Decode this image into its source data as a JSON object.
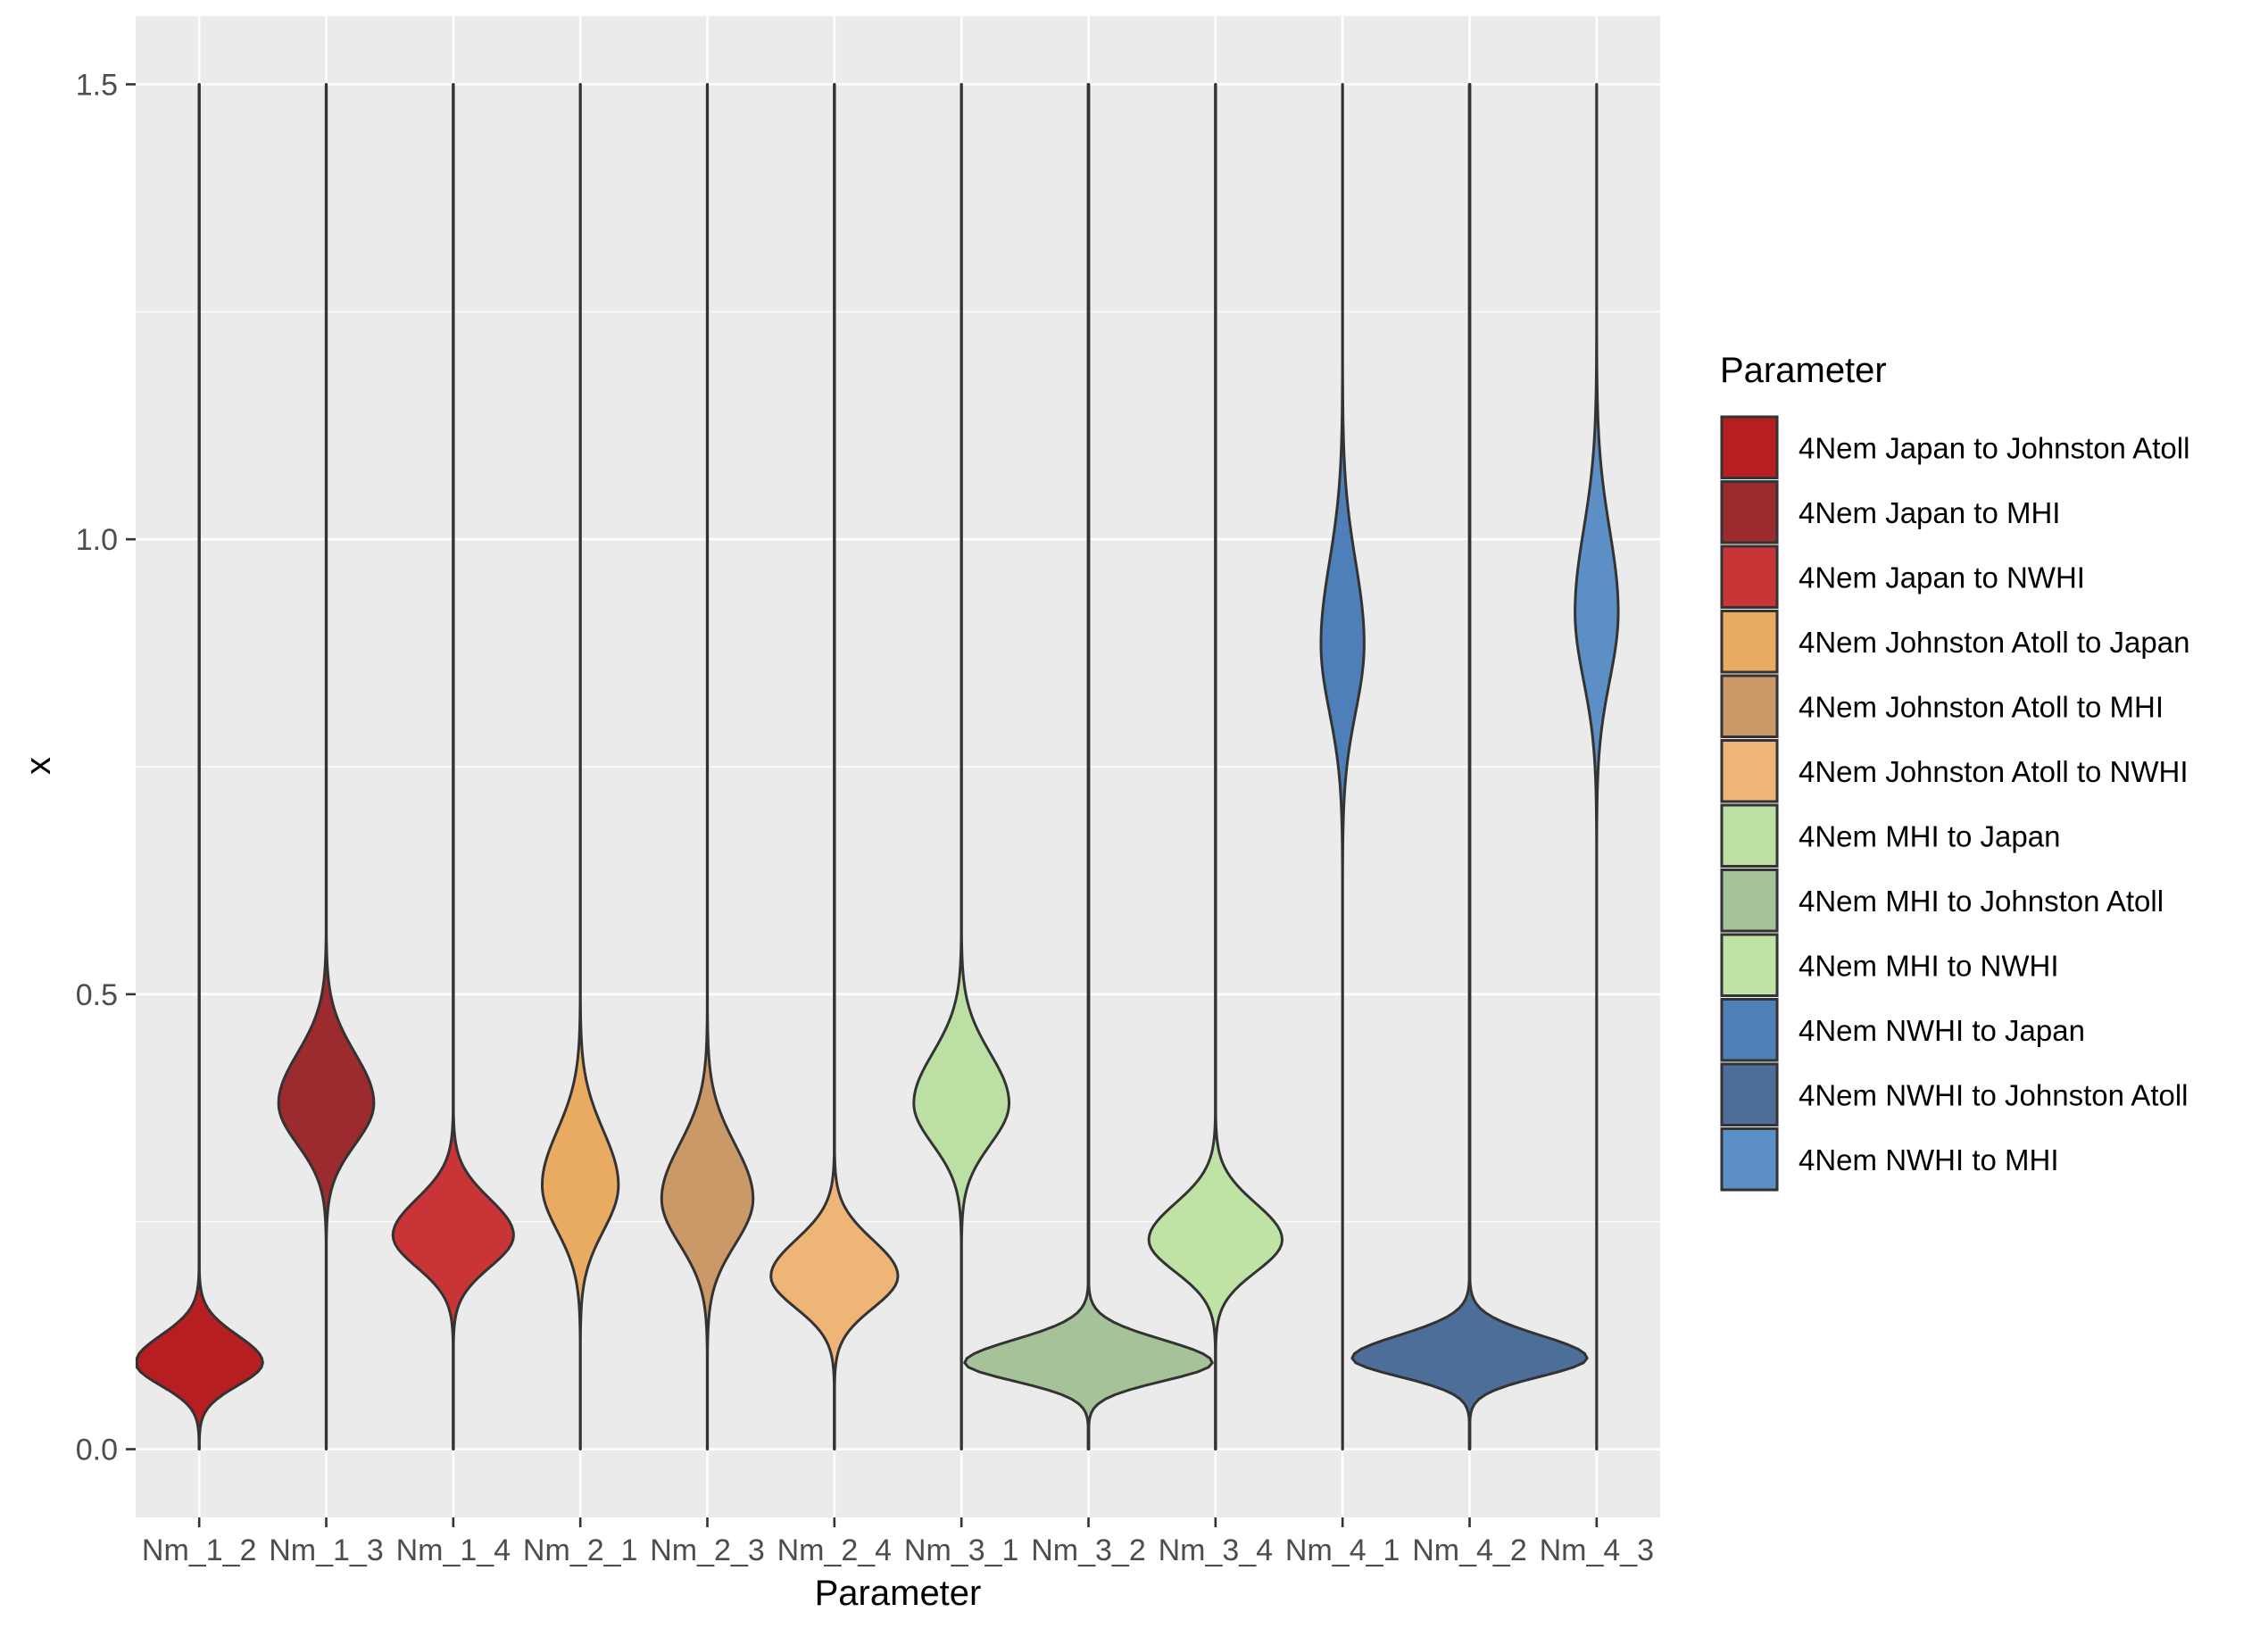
{
  "chart_data": {
    "type": "violin",
    "xlabel": "Parameter",
    "ylabel": "x",
    "ylim": [
      -0.075,
      1.575
    ],
    "yticks": [
      0.0,
      0.5,
      1.0,
      1.5
    ],
    "ytick_labels": [
      "0.0",
      "0.5",
      "1.0",
      "1.5"
    ],
    "grid": true,
    "legend_position": "right",
    "legend": {
      "title": "Parameter",
      "entries": [
        {
          "label": "4Nem Japan to Johnston Atoll",
          "color": "#B71E22"
        },
        {
          "label": "4Nem Japan to MHI",
          "color": "#9B2B2F"
        },
        {
          "label": "4Nem Japan to NWHI",
          "color": "#C93437"
        },
        {
          "label": "4Nem Johnston Atoll to Japan",
          "color": "#E9AB61"
        },
        {
          "label": "4Nem Johnston Atoll to MHI",
          "color": "#CB9968"
        },
        {
          "label": "4Nem Johnston Atoll to NWHI",
          "color": "#EEB576"
        },
        {
          "label": "4Nem MHI to Japan",
          "color": "#BCE0A3"
        },
        {
          "label": "4Nem MHI to Johnston Atoll",
          "color": "#A6C298"
        },
        {
          "label": "4Nem MHI to NWHI",
          "color": "#BFE3A5"
        },
        {
          "label": "4Nem NWHI to Japan",
          "color": "#4E7FB8"
        },
        {
          "label": "4Nem NWHI to Johnston Atoll",
          "color": "#4E6E9A"
        },
        {
          "label": "4Nem NWHI to MHI",
          "color": "#5D8FC7"
        }
      ]
    },
    "categories": [
      "Nm_1_2",
      "Nm_1_3",
      "Nm_1_4",
      "Nm_2_1",
      "Nm_2_3",
      "Nm_2_4",
      "Nm_3_1",
      "Nm_3_2",
      "Nm_3_4",
      "Nm_4_1",
      "Nm_4_2",
      "Nm_4_3"
    ],
    "series": [
      {
        "category": "Nm_1_2",
        "color": "#B71E22",
        "min": 0.0,
        "max": 1.5,
        "mode": 0.095,
        "peak_width": 1.0,
        "spread_low": 0.025,
        "spread_high": 0.03,
        "skew": "right"
      },
      {
        "category": "Nm_1_3",
        "color": "#9B2B2F",
        "min": 0.0,
        "max": 1.5,
        "mode": 0.38,
        "peak_width": 0.75,
        "spread_low": 0.045,
        "spread_high": 0.055,
        "skew": "none"
      },
      {
        "category": "Nm_1_4",
        "color": "#C93437",
        "min": 0.0,
        "max": 1.5,
        "mode": 0.235,
        "peak_width": 0.95,
        "spread_low": 0.035,
        "spread_high": 0.04,
        "skew": "none"
      },
      {
        "category": "Nm_2_1",
        "color": "#E9AB61",
        "min": 0.0,
        "max": 1.5,
        "mode": 0.29,
        "peak_width": 0.6,
        "spread_low": 0.05,
        "spread_high": 0.06,
        "skew": "none"
      },
      {
        "category": "Nm_2_3",
        "color": "#CB9968",
        "min": 0.0,
        "max": 1.5,
        "mode": 0.275,
        "peak_width": 0.72,
        "spread_low": 0.05,
        "spread_high": 0.06,
        "skew": "none"
      },
      {
        "category": "Nm_2_4",
        "color": "#EEB576",
        "min": 0.0,
        "max": 1.5,
        "mode": 0.19,
        "peak_width": 1.0,
        "spread_low": 0.035,
        "spread_high": 0.04,
        "skew": "none"
      },
      {
        "category": "Nm_3_1",
        "color": "#BCE0A3",
        "min": 0.0,
        "max": 1.5,
        "mode": 0.38,
        "peak_width": 0.75,
        "spread_low": 0.045,
        "spread_high": 0.055,
        "skew": "none"
      },
      {
        "category": "Nm_3_2",
        "color": "#A6C298",
        "min": 0.0,
        "max": 1.5,
        "mode": 0.095,
        "peak_width": 1.95,
        "spread_low": 0.02,
        "spread_high": 0.025,
        "skew": "none"
      },
      {
        "category": "Nm_3_4",
        "color": "#BFE3A5",
        "min": 0.0,
        "max": 1.5,
        "mode": 0.23,
        "peak_width": 1.05,
        "spread_low": 0.035,
        "spread_high": 0.04,
        "skew": "none"
      },
      {
        "category": "Nm_4_1",
        "color": "#4E7FB8",
        "min": 0.0,
        "max": 1.5,
        "mode": 0.885,
        "peak_width": 0.34,
        "spread_low": 0.075,
        "spread_high": 0.09,
        "skew": "none"
      },
      {
        "category": "Nm_4_2",
        "color": "#4E6E9A",
        "min": 0.0,
        "max": 1.5,
        "mode": 0.1,
        "peak_width": 1.85,
        "spread_low": 0.02,
        "spread_high": 0.025,
        "skew": "none"
      },
      {
        "category": "Nm_4_3",
        "color": "#5D8FC7",
        "min": 0.0,
        "max": 1.5,
        "mode": 0.92,
        "peak_width": 0.34,
        "spread_low": 0.075,
        "spread_high": 0.09,
        "skew": "none"
      }
    ]
  }
}
